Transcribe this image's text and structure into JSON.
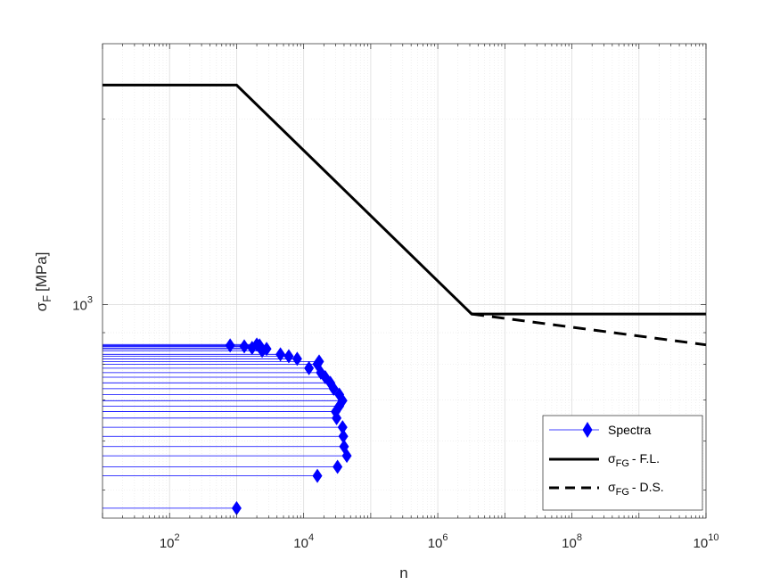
{
  "chart_data": {
    "type": "line",
    "xlabel": "n",
    "ylabel": "σ",
    "ylabel_subscript": "F",
    "ylabel_unit": "[MPa]",
    "xscale": "log",
    "yscale": "log",
    "xlim": [
      10,
      10000000000
    ],
    "ylim": [
      450,
      2650
    ],
    "x_ticks": [
      {
        "value": 100,
        "base": "10",
        "exp": "2"
      },
      {
        "value": 10000,
        "base": "10",
        "exp": "4"
      },
      {
        "value": 1000000,
        "base": "10",
        "exp": "6"
      },
      {
        "value": 100000000,
        "base": "10",
        "exp": "8"
      },
      {
        "value": 10000000000,
        "base": "10",
        "exp": "10"
      }
    ],
    "y_ticks": [
      {
        "value": 1000,
        "base": "10",
        "exp": "3"
      }
    ],
    "grid": "major and minor, dotted",
    "legend_position": "bottom-right",
    "series": [
      {
        "name": "Spectra",
        "style": "thin line with diamond markers",
        "color": "#0000ff",
        "points": [
          [
            1000,
            467
          ],
          [
            16000,
            527
          ],
          [
            32000,
            545
          ],
          [
            44000,
            568
          ],
          [
            40000,
            588
          ],
          [
            39000,
            611
          ],
          [
            38000,
            632
          ],
          [
            31000,
            654
          ],
          [
            30000,
            670
          ],
          [
            34000,
            684
          ],
          [
            38000,
            698
          ],
          [
            34000,
            714
          ],
          [
            28000,
            730
          ],
          [
            25000,
            746
          ],
          [
            21000,
            762
          ],
          [
            18000,
            775
          ],
          [
            12000,
            788
          ],
          [
            16000,
            800
          ],
          [
            17000,
            808
          ],
          [
            8000,
            816
          ],
          [
            6000,
            824
          ],
          [
            4500,
            830
          ],
          [
            2400,
            841
          ],
          [
            2800,
            847
          ],
          [
            1700,
            850
          ],
          [
            1300,
            855
          ],
          [
            2200,
            858
          ],
          [
            800,
            858
          ],
          [
            2000,
            861
          ]
        ]
      },
      {
        "name": "- F.L.",
        "legend_sigma": "σ",
        "legend_subscript": "FG",
        "style": "thick solid line",
        "color": "#000000",
        "x": [
          10,
          1000,
          3200000,
          10000000000
        ],
        "y": [
          2270,
          2270,
          965,
          965
        ]
      },
      {
        "name": "- D.S.",
        "legend_sigma": "σ",
        "legend_subscript": "FG",
        "style": "thick dashed line",
        "color": "#000000",
        "x": [
          3200000,
          10000000000
        ],
        "y": [
          965,
          860
        ]
      }
    ]
  }
}
